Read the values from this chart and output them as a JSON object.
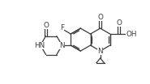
{
  "bg_color": "#ffffff",
  "line_color": "#3a3a3a",
  "line_width": 0.9,
  "font_size": 5.8,
  "figsize": [
    1.85,
    1.04
  ],
  "dpi": 100,
  "xlim": [
    0,
    9.5
  ],
  "ylim": [
    0,
    5.2
  ]
}
